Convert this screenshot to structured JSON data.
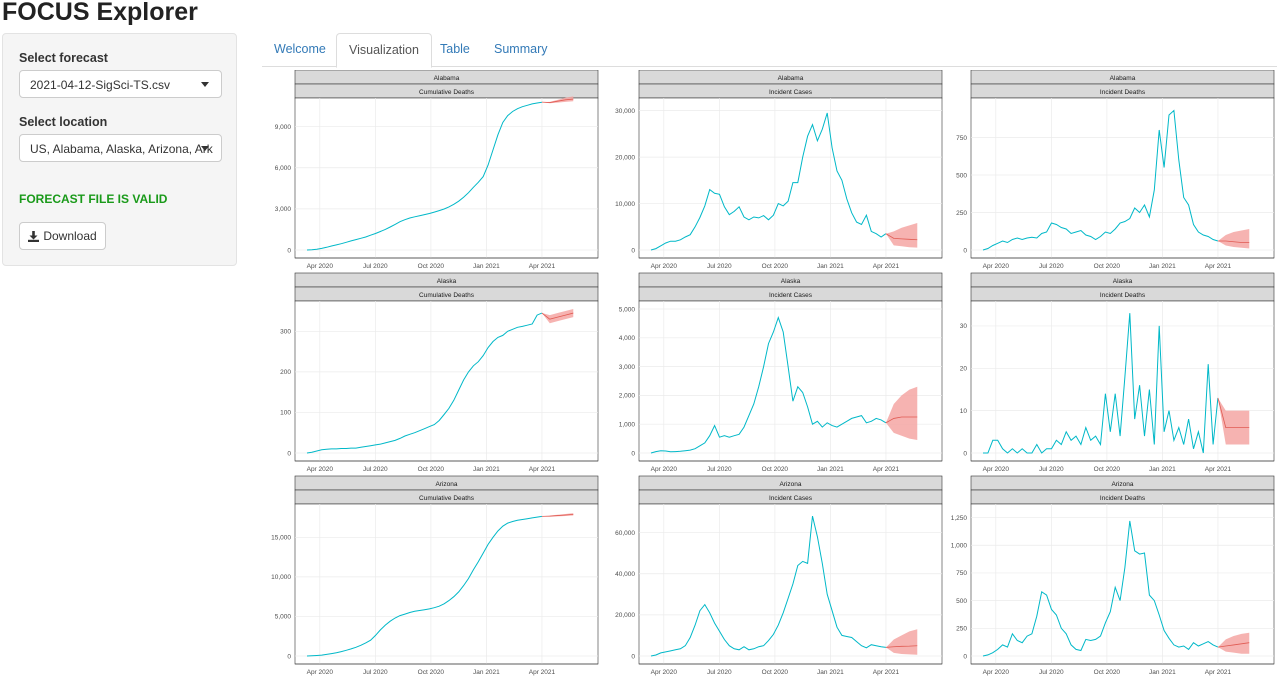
{
  "app": {
    "title": "FOCUS Explorer"
  },
  "sidebar": {
    "forecast_label": "Select forecast",
    "forecast_value": "2021-04-12-SigSci-TS.csv",
    "location_label": "Select location",
    "location_value": "US, Alabama, Alaska, Arizona, Ark",
    "status_text": "FORECAST FILE IS VALID",
    "download_label": "Download",
    "status_color": "#1a9a1a"
  },
  "tabs": [
    {
      "label": "Welcome",
      "active": false
    },
    {
      "label": "Visualization",
      "active": true
    },
    {
      "label": "Table",
      "active": false
    },
    {
      "label": "Summary",
      "active": false
    }
  ],
  "colors": {
    "series": "#00b8c8",
    "forecast_band": "#f4a6a3",
    "forecast_line": "#e05a52",
    "strip": "#d9d9d9"
  },
  "chart_data": [
    {
      "type": "line",
      "location": "Alabama",
      "target": "Cumulative Deaths",
      "x_ticks": [
        "Apr 2020",
        "Jul 2020",
        "Oct 2020",
        "Jan 2021",
        "Apr 2021"
      ],
      "y_ticks": [
        "0",
        "3,000",
        "6,000",
        "9,000"
      ],
      "ylim": [
        0,
        10500
      ],
      "series": [
        {
          "values": [
            0,
            20,
            60,
            120,
            200,
            290,
            370,
            460,
            560,
            660,
            760,
            850,
            950,
            1080,
            1200,
            1350,
            1500,
            1680,
            1870,
            2060,
            2210,
            2330,
            2420,
            2500,
            2580,
            2660,
            2760,
            2870,
            2990,
            3140,
            3330,
            3560,
            3840,
            4180,
            4570,
            4940,
            5350,
            6200,
            7300,
            8400,
            9300,
            9800,
            10100,
            10300,
            10450,
            10550,
            10650,
            10720,
            10780
          ]
        }
      ],
      "forecast": {
        "lower": [
          10700,
          10750,
          10800,
          10850
        ],
        "upper": [
          10800,
          10950,
          11100,
          11200
        ],
        "median": [
          10750,
          10850,
          10950,
          11000
        ]
      }
    },
    {
      "type": "line",
      "location": "Alabama",
      "target": "Incident Cases",
      "x_ticks": [
        "Apr 2020",
        "Jul 2020",
        "Oct 2020",
        "Jan 2021",
        "Apr 2021"
      ],
      "y_ticks": [
        "0",
        "10,000",
        "20,000",
        "30,000"
      ],
      "ylim": [
        0,
        31000
      ],
      "series": [
        {
          "values": [
            0,
            300,
            900,
            1500,
            1900,
            1900,
            2200,
            2800,
            3300,
            5000,
            7000,
            9500,
            13000,
            12200,
            12000,
            9300,
            7600,
            8300,
            9300,
            7100,
            6500,
            7100,
            6900,
            7400,
            6500,
            7500,
            10000,
            9500,
            10500,
            14500,
            14500,
            20000,
            24500,
            27000,
            23500,
            26000,
            29500,
            22000,
            17000,
            15000,
            11000,
            8000,
            6000,
            5500,
            7500,
            4000,
            3500,
            2800,
            3500
          ]
        }
      ],
      "forecast": {
        "lower": [
          1000,
          800,
          600,
          500
        ],
        "upper": [
          4000,
          4800,
          5300,
          5800
        ],
        "median": [
          2500,
          2400,
          2300,
          2200
        ]
      }
    },
    {
      "type": "line",
      "location": "Alabama",
      "target": "Incident Deaths",
      "x_ticks": [
        "Apr 2020",
        "Jul 2020",
        "Oct 2020",
        "Jan 2021",
        "Apr 2021"
      ],
      "y_ticks": [
        "0",
        "250",
        "500",
        "750"
      ],
      "ylim": [
        0,
        960
      ],
      "series": [
        {
          "values": [
            0,
            10,
            30,
            45,
            60,
            50,
            70,
            80,
            70,
            80,
            85,
            80,
            110,
            120,
            180,
            170,
            150,
            140,
            110,
            120,
            130,
            100,
            90,
            70,
            90,
            120,
            110,
            140,
            180,
            190,
            210,
            280,
            250,
            300,
            220,
            400,
            800,
            550,
            900,
            930,
            600,
            350,
            300,
            170,
            120,
            100,
            90,
            70,
            60
          ]
        }
      ],
      "forecast": {
        "lower": [
          30,
          20,
          15,
          10
        ],
        "upper": [
          100,
          120,
          130,
          140
        ],
        "median": [
          60,
          55,
          50,
          50
        ]
      }
    },
    {
      "type": "line",
      "location": "Alaska",
      "target": "Cumulative Deaths",
      "x_ticks": [
        "Apr 2020",
        "Jul 2020",
        "Oct 2020",
        "Jan 2021",
        "Apr 2021"
      ],
      "y_ticks": [
        "0",
        "100",
        "200",
        "300"
      ],
      "ylim": [
        0,
        355
      ],
      "series": [
        {
          "values": [
            0,
            2,
            5,
            8,
            9,
            10,
            10,
            11,
            11,
            12,
            12,
            14,
            16,
            18,
            20,
            22,
            25,
            28,
            31,
            36,
            42,
            46,
            50,
            55,
            60,
            65,
            70,
            80,
            95,
            110,
            130,
            155,
            180,
            200,
            215,
            225,
            240,
            260,
            275,
            285,
            290,
            300,
            305,
            310,
            312,
            315,
            318,
            340,
            345
          ]
        }
      ],
      "forecast": {
        "lower": [
          320,
          325,
          330,
          335
        ],
        "upper": [
          340,
          345,
          350,
          355
        ],
        "median": [
          330,
          335,
          340,
          345
        ]
      }
    },
    {
      "type": "line",
      "location": "Alaska",
      "target": "Incident Cases",
      "x_ticks": [
        "Apr 2020",
        "Jul 2020",
        "Oct 2020",
        "Jan 2021",
        "Apr 2021"
      ],
      "y_ticks": [
        "0",
        "1,000",
        "2,000",
        "3,000",
        "4,000",
        "5,000"
      ],
      "ylim": [
        0,
        5000
      ],
      "series": [
        {
          "values": [
            0,
            50,
            80,
            70,
            40,
            50,
            60,
            80,
            100,
            150,
            250,
            350,
            600,
            950,
            550,
            600,
            550,
            600,
            650,
            900,
            1300,
            1700,
            2300,
            3000,
            3800,
            4200,
            4700,
            4200,
            3000,
            1800,
            2300,
            2100,
            1600,
            1000,
            1100,
            900,
            1050,
            950,
            900,
            1000,
            1100,
            1200,
            1250,
            1300,
            1050,
            1100,
            1200,
            1150,
            1050
          ]
        }
      ],
      "forecast": {
        "lower": [
          700,
          600,
          500,
          450
        ],
        "upper": [
          1700,
          2000,
          2200,
          2300
        ],
        "median": [
          1200,
          1250,
          1250,
          1250
        ]
      }
    },
    {
      "type": "line",
      "location": "Alaska",
      "target": "Incident Deaths",
      "x_ticks": [
        "Apr 2020",
        "Jul 2020",
        "Oct 2020",
        "Jan 2021",
        "Apr 2021"
      ],
      "y_ticks": [
        "0",
        "10",
        "20",
        "30"
      ],
      "ylim": [
        0,
        34
      ],
      "series": [
        {
          "values": [
            0,
            0,
            3,
            3,
            1,
            0,
            1,
            0,
            1,
            0,
            0,
            2,
            0,
            1,
            1,
            3,
            2,
            5,
            3,
            4,
            2,
            6,
            3,
            4,
            2,
            14,
            5,
            14,
            4,
            18,
            33,
            8,
            16,
            4,
            15,
            2,
            30,
            5,
            10,
            3,
            6,
            2,
            8,
            1,
            5,
            0,
            21,
            2,
            13
          ]
        }
      ],
      "forecast": {
        "lower": [
          2,
          2,
          2,
          2
        ],
        "upper": [
          10,
          10,
          10,
          10
        ],
        "median": [
          6,
          6,
          6,
          6
        ]
      }
    },
    {
      "type": "line",
      "location": "Arizona",
      "target": "Cumulative Deaths",
      "x_ticks": [
        "Apr 2020",
        "Jul 2020",
        "Oct 2020",
        "Jan 2021",
        "Apr 2021"
      ],
      "y_ticks": [
        "0",
        "5,000",
        "10,000",
        "15,000"
      ],
      "ylim": [
        0,
        18200
      ],
      "series": [
        {
          "values": [
            0,
            20,
            60,
            120,
            200,
            300,
            420,
            560,
            720,
            900,
            1100,
            1350,
            1650,
            2000,
            2600,
            3300,
            3900,
            4400,
            4800,
            5100,
            5300,
            5500,
            5650,
            5750,
            5850,
            5950,
            6100,
            6300,
            6600,
            7000,
            7500,
            8100,
            8900,
            9800,
            10900,
            11900,
            13000,
            14100,
            15000,
            15800,
            16400,
            16800,
            17000,
            17150,
            17250,
            17350,
            17450,
            17550,
            17650
          ]
        }
      ],
      "forecast": {
        "lower": [
          17600,
          17650,
          17700,
          17750
        ],
        "upper": [
          17750,
          17850,
          17950,
          18050
        ],
        "median": [
          17680,
          17750,
          17820,
          17900
        ]
      }
    },
    {
      "type": "line",
      "location": "Arizona",
      "target": "Incident Cases",
      "x_ticks": [
        "Apr 2020",
        "Jul 2020",
        "Oct 2020",
        "Jan 2021",
        "Apr 2021"
      ],
      "y_ticks": [
        "0",
        "20,000",
        "40,000",
        "60,000"
      ],
      "ylim": [
        0,
        70000
      ],
      "series": [
        {
          "values": [
            0,
            500,
            1500,
            2000,
            2500,
            3000,
            3500,
            5000,
            9000,
            15000,
            22000,
            25000,
            21000,
            16000,
            12000,
            8000,
            5000,
            3500,
            3000,
            4500,
            3000,
            3500,
            4500,
            5000,
            7500,
            10500,
            15000,
            21000,
            28000,
            35000,
            44000,
            46000,
            45000,
            68000,
            58000,
            45000,
            30000,
            22000,
            14000,
            10000,
            9500,
            9000,
            7000,
            5000,
            4000,
            5500,
            5000,
            4500,
            4200
          ]
        }
      ],
      "forecast": {
        "lower": [
          1500,
          1000,
          800,
          600
        ],
        "upper": [
          8000,
          10000,
          12000,
          13000
        ],
        "median": [
          4500,
          4700,
          4800,
          5000
        ]
      }
    },
    {
      "type": "line",
      "location": "Arizona",
      "target": "Incident Deaths",
      "x_ticks": [
        "Apr 2020",
        "Jul 2020",
        "Oct 2020",
        "Jan 2021",
        "Apr 2021"
      ],
      "y_ticks": [
        "0",
        "250",
        "500",
        "750",
        "1,000",
        "1,250"
      ],
      "ylim": [
        0,
        1300
      ],
      "series": [
        {
          "values": [
            0,
            10,
            30,
            60,
            100,
            80,
            200,
            140,
            120,
            180,
            200,
            360,
            580,
            550,
            420,
            370,
            250,
            200,
            100,
            60,
            50,
            150,
            140,
            150,
            180,
            300,
            400,
            620,
            500,
            800,
            1220,
            950,
            920,
            930,
            550,
            500,
            370,
            230,
            160,
            100,
            80,
            90,
            60,
            120,
            90,
            110,
            130,
            100,
            80
          ]
        }
      ],
      "forecast": {
        "lower": [
          40,
          30,
          20,
          20
        ],
        "upper": [
          150,
          180,
          200,
          210
        ],
        "median": [
          90,
          100,
          110,
          120
        ]
      }
    }
  ]
}
